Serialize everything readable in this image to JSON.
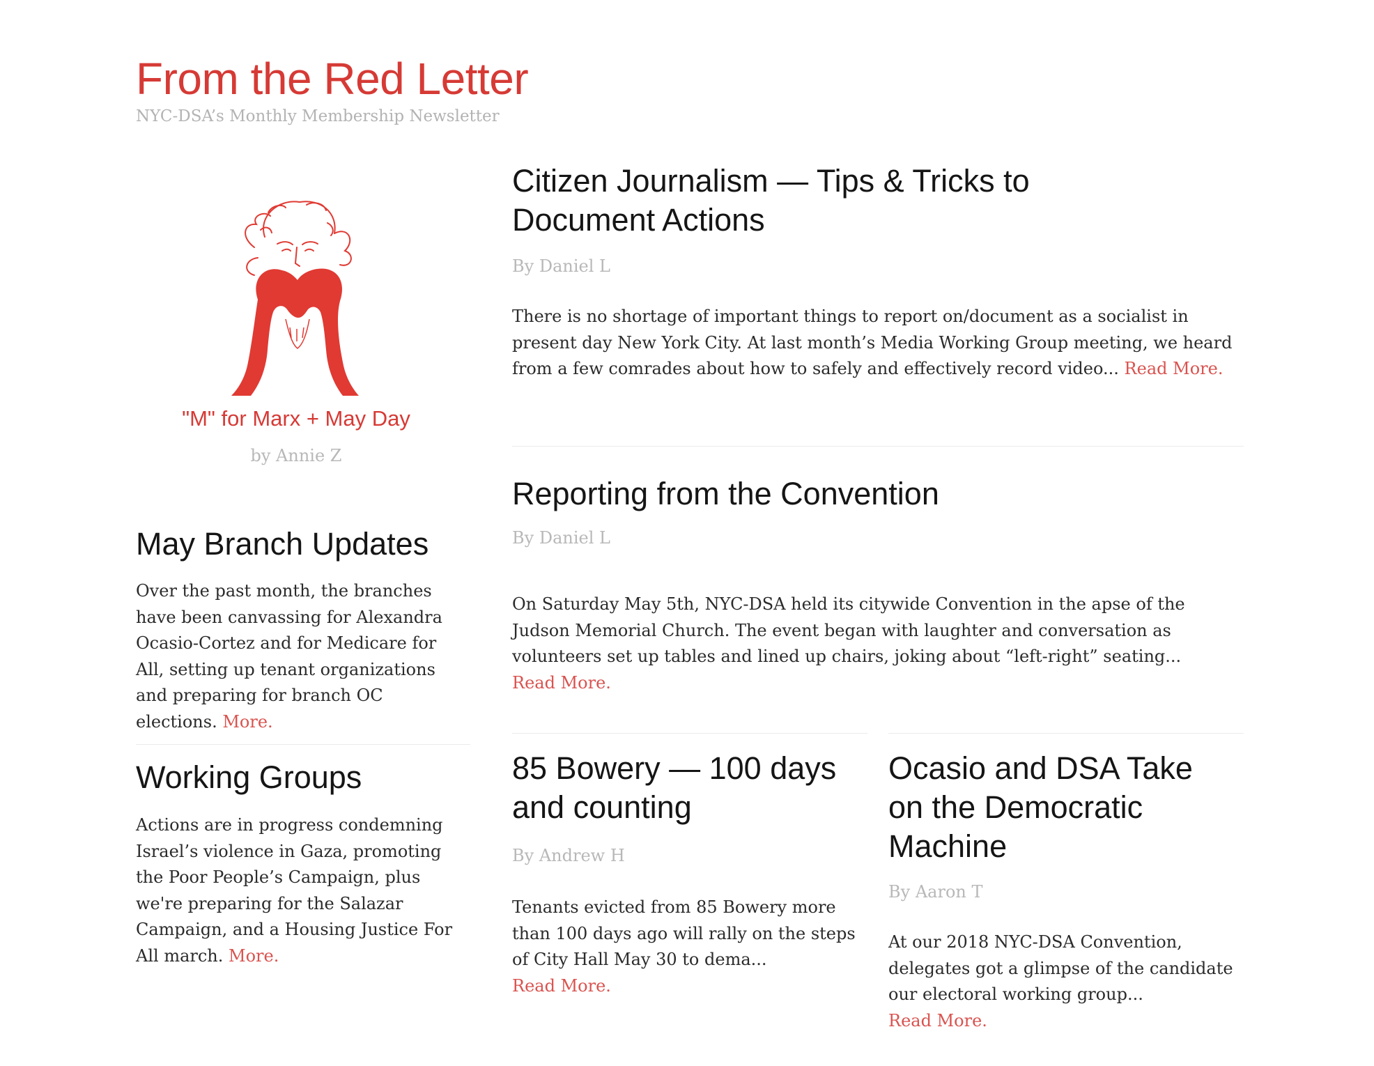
{
  "header": {
    "title": "From the Red Letter",
    "subtitle": "NYC-DSA’s Monthly Membership Newsletter"
  },
  "sidebar": {
    "art": {
      "caption": "\"M\" for Marx + May Day",
      "byline": "by Annie Z",
      "color": "#e03a33"
    },
    "branch_updates": {
      "title": "May Branch Updates",
      "body": "Over the past month, the branches have been canvassing for Alexandra Ocasio-Cortez and for Medicare for All, setting up tenant organizations and preparing for branch OC elections.",
      "more": "More."
    },
    "working_groups": {
      "title": "Working Groups",
      "body": "Actions are in progress condemning Israel’s violence in Gaza, promoting the Poor People’s Campaign, plus we're preparing for the Salazar Campaign, and a Housing Justice For All march.",
      "more": "More."
    }
  },
  "articles": {
    "citizen_journalism": {
      "title": "Citizen Journalism — Tips & Tricks to Document Actions",
      "byline": "By Daniel L",
      "body": "There is no shortage of important things to report on/document as a socialist in present day New York City. At last month’s Media Working Group meeting, we heard from a few comrades about how to safely and effectively record video...",
      "more": "Read More."
    },
    "convention": {
      "title": "Reporting from the Convention",
      "byline": "By Daniel L",
      "body": "On Saturday May 5th, NYC-DSA held its citywide Convention in the apse of the Judson Memorial Church. The event began with laughter and conversation as volunteers set up tables and lined up chairs, joking about “left-right” seating...",
      "more": "Read More."
    },
    "bowery": {
      "title": "85 Bowery — 100 days and counting",
      "byline": "By Andrew H",
      "body": "Tenants evicted from 85 Bowery more than 100 days ago will rally on the steps of City Hall May 30 to dema...",
      "more": "Read More."
    },
    "ocasio": {
      "title": "Ocasio and DSA Take on the Democratic Machine",
      "byline": "By Aaron T",
      "body": "At our 2018 NYC-DSA Convention, delegates got a glimpse of the candidate our electoral working group...",
      "more": "Read More."
    }
  },
  "colors": {
    "accent": "#d63a35",
    "link": "#d9534f",
    "muted": "#b8b8b8",
    "text": "#2b2b2b"
  }
}
